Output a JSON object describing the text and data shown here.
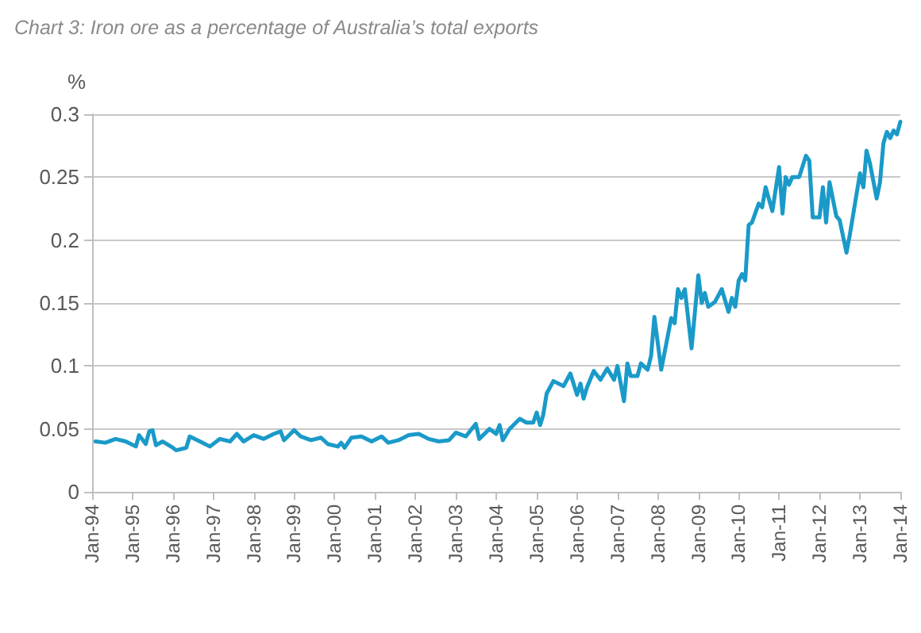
{
  "chart_data": {
    "type": "line",
    "title": "Chart 3: Iron ore as a percentage of Australia’s total exports",
    "ylabel": "%",
    "x": [
      "1994-02",
      "1994-05",
      "1994-08",
      "1994-11",
      "1995-02",
      "1995-03",
      "1995-05",
      "1995-06",
      "1995-07",
      "1995-08",
      "1995-10",
      "1996-01",
      "1996-02",
      "1996-05",
      "1996-06",
      "1996-09",
      "1996-12",
      "1997-03",
      "1997-06",
      "1997-08",
      "1997-10",
      "1998-01",
      "1998-04",
      "1998-07",
      "1998-09",
      "1998-10",
      "1999-01",
      "1999-03",
      "1999-06",
      "1999-09",
      "1999-11",
      "2000-02",
      "2000-03",
      "2000-04",
      "2000-06",
      "2000-09",
      "2000-12",
      "2001-03",
      "2001-05",
      "2001-08",
      "2001-11",
      "2002-02",
      "2002-05",
      "2002-08",
      "2002-11",
      "2003-01",
      "2003-04",
      "2003-07",
      "2003-08",
      "2003-11",
      "2004-01",
      "2004-02",
      "2004-03",
      "2004-05",
      "2004-08",
      "2004-10",
      "2004-12",
      "2005-01",
      "2005-02",
      "2005-03",
      "2005-04",
      "2005-06",
      "2005-09",
      "2005-11",
      "2006-01",
      "2006-02",
      "2006-03",
      "2006-04",
      "2006-06",
      "2006-08",
      "2006-10",
      "2006-12",
      "2007-01",
      "2007-03",
      "2007-04",
      "2007-05",
      "2007-07",
      "2007-08",
      "2007-10",
      "2007-11",
      "2007-12",
      "2008-02",
      "2008-05",
      "2008-06",
      "2008-07",
      "2008-08",
      "2008-09",
      "2008-11",
      "2009-01",
      "2009-02",
      "2009-03",
      "2009-04",
      "2009-06",
      "2009-08",
      "2009-10",
      "2009-11",
      "2009-12",
      "2010-01",
      "2010-02",
      "2010-03",
      "2010-04",
      "2010-05",
      "2010-07",
      "2010-08",
      "2010-09",
      "2010-11",
      "2011-01",
      "2011-02",
      "2011-03",
      "2011-04",
      "2011-05",
      "2011-07",
      "2011-09",
      "2011-10",
      "2011-11",
      "2012-01",
      "2012-02",
      "2012-03",
      "2012-04",
      "2012-06",
      "2012-07",
      "2012-09",
      "2012-10",
      "2013-01",
      "2013-02",
      "2013-03",
      "2013-04",
      "2013-06",
      "2013-07",
      "2013-08",
      "2013-09",
      "2013-10",
      "2013-11",
      "2013-12",
      "2014-01"
    ],
    "series": [
      {
        "color": "#1a9ac9",
        "values": [
          0.04,
          0.039,
          0.042,
          0.04,
          0.036,
          0.045,
          0.038,
          0.048,
          0.049,
          0.037,
          0.04,
          0.035,
          0.033,
          0.035,
          0.044,
          0.04,
          0.036,
          0.042,
          0.04,
          0.046,
          0.04,
          0.045,
          0.042,
          0.046,
          0.048,
          0.041,
          0.049,
          0.044,
          0.041,
          0.043,
          0.038,
          0.036,
          0.039,
          0.035,
          0.043,
          0.044,
          0.04,
          0.044,
          0.039,
          0.041,
          0.045,
          0.046,
          0.042,
          0.04,
          0.041,
          0.047,
          0.044,
          0.054,
          0.042,
          0.05,
          0.046,
          0.053,
          0.041,
          0.05,
          0.058,
          0.055,
          0.055,
          0.063,
          0.053,
          0.061,
          0.078,
          0.088,
          0.084,
          0.094,
          0.077,
          0.086,
          0.074,
          0.083,
          0.096,
          0.089,
          0.098,
          0.089,
          0.1,
          0.072,
          0.102,
          0.092,
          0.092,
          0.102,
          0.097,
          0.108,
          0.139,
          0.097,
          0.138,
          0.134,
          0.161,
          0.154,
          0.161,
          0.114,
          0.172,
          0.15,
          0.158,
          0.147,
          0.151,
          0.161,
          0.143,
          0.154,
          0.147,
          0.168,
          0.173,
          0.168,
          0.212,
          0.214,
          0.229,
          0.226,
          0.242,
          0.223,
          0.258,
          0.221,
          0.25,
          0.244,
          0.25,
          0.25,
          0.267,
          0.263,
          0.218,
          0.218,
          0.242,
          0.214,
          0.246,
          0.219,
          0.216,
          0.19,
          0.204,
          0.253,
          0.242,
          0.271,
          0.261,
          0.233,
          0.246,
          0.277,
          0.286,
          0.281,
          0.287,
          0.284,
          0.294
        ]
      }
    ],
    "xlim": [
      "1994-01",
      "2014-01"
    ],
    "xticks": [
      {
        "value": "1994-01",
        "label": "Jan-94"
      },
      {
        "value": "1995-01",
        "label": "Jan-95"
      },
      {
        "value": "1996-01",
        "label": "Jan-96"
      },
      {
        "value": "1997-01",
        "label": "Jan-97"
      },
      {
        "value": "1998-01",
        "label": "Jan-98"
      },
      {
        "value": "1999-01",
        "label": "Jan-99"
      },
      {
        "value": "2000-01",
        "label": "Jan-00"
      },
      {
        "value": "2001-01",
        "label": "Jan-01"
      },
      {
        "value": "2002-01",
        "label": "Jan-02"
      },
      {
        "value": "2003-01",
        "label": "Jan-03"
      },
      {
        "value": "2004-01",
        "label": "Jan-04"
      },
      {
        "value": "2005-01",
        "label": "Jan-05"
      },
      {
        "value": "2006-01",
        "label": "Jan-06"
      },
      {
        "value": "2007-01",
        "label": "Jan-07"
      },
      {
        "value": "2008-01",
        "label": "Jan-08"
      },
      {
        "value": "2009-01",
        "label": "Jan-09"
      },
      {
        "value": "2010-01",
        "label": "Jan-10"
      },
      {
        "value": "2011-01",
        "label": "Jan-11"
      },
      {
        "value": "2012-01",
        "label": "Jan-12"
      },
      {
        "value": "2013-01",
        "label": "Jan-13"
      },
      {
        "value": "2014-01",
        "label": "Jan-14"
      }
    ],
    "ylim": [
      0,
      0.3
    ],
    "yticks": [
      0,
      0.05,
      0.1,
      0.15,
      0.2,
      0.25,
      0.3
    ],
    "grid": "y",
    "marker": "none",
    "line_style": "solid"
  }
}
